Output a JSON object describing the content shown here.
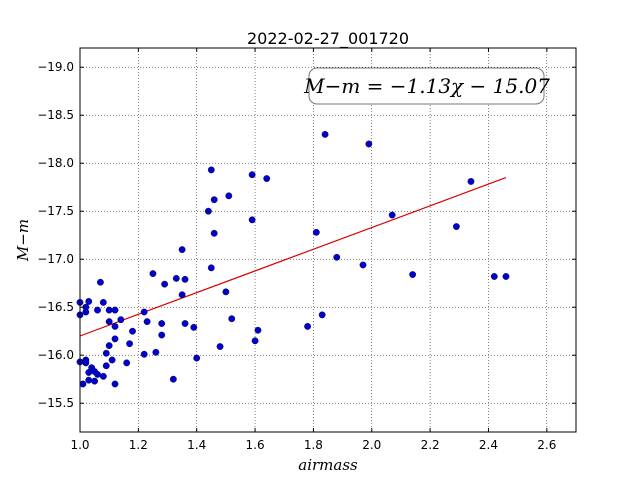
{
  "chart_data": {
    "type": "scatter",
    "title": "2022-02-27_001720",
    "xlabel": "airmass",
    "ylabel": "M−m",
    "xlim": [
      1.0,
      2.7
    ],
    "ylim": [
      -19.2,
      -15.2
    ],
    "y_inverted": true,
    "grid": true,
    "xticks": [
      "1.0",
      "1.2",
      "1.4",
      "1.6",
      "1.8",
      "2.0",
      "2.2",
      "2.4",
      "2.6"
    ],
    "yticks": [
      "−15.5",
      "−16.0",
      "−16.5",
      "−17.0",
      "−17.5",
      "−18.0",
      "−18.5",
      "−19.0"
    ],
    "annotation": "M−m = −1.13χ − 15.07",
    "fit": {
      "slope": -1.13,
      "intercept": -15.07,
      "x_range": [
        1.0,
        2.46
      ],
      "color": "#dd0000"
    },
    "marker_color": "#0000cc",
    "points": [
      [
        1.0,
        -15.93
      ],
      [
        1.01,
        -15.7
      ],
      [
        1.02,
        -15.95
      ],
      [
        1.02,
        -15.92
      ],
      [
        1.03,
        -15.82
      ],
      [
        1.03,
        -15.74
      ],
      [
        1.04,
        -15.87
      ],
      [
        1.05,
        -15.73
      ],
      [
        1.05,
        -15.83
      ],
      [
        1.06,
        -15.8
      ],
      [
        1.08,
        -15.78
      ],
      [
        1.09,
        -15.89
      ],
      [
        1.09,
        -16.02
      ],
      [
        1.1,
        -16.1
      ],
      [
        1.12,
        -15.7
      ],
      [
        1.11,
        -15.95
      ],
      [
        1.16,
        -15.92
      ],
      [
        1.0,
        -16.42
      ],
      [
        1.0,
        -16.55
      ],
      [
        1.02,
        -16.45
      ],
      [
        1.02,
        -16.5
      ],
      [
        1.03,
        -16.56
      ],
      [
        1.06,
        -16.47
      ],
      [
        1.08,
        -16.55
      ],
      [
        1.07,
        -16.76
      ],
      [
        1.1,
        -16.35
      ],
      [
        1.1,
        -16.47
      ],
      [
        1.12,
        -16.3
      ],
      [
        1.12,
        -16.17
      ],
      [
        1.12,
        -16.47
      ],
      [
        1.14,
        -16.37
      ],
      [
        1.17,
        -16.12
      ],
      [
        1.18,
        -16.25
      ],
      [
        1.22,
        -16.01
      ],
      [
        1.22,
        -16.45
      ],
      [
        1.23,
        -16.35
      ],
      [
        1.25,
        -16.85
      ],
      [
        1.26,
        -16.03
      ],
      [
        1.28,
        -16.21
      ],
      [
        1.28,
        -16.33
      ],
      [
        1.29,
        -16.74
      ],
      [
        1.32,
        -15.75
      ],
      [
        1.33,
        -16.8
      ],
      [
        1.35,
        -17.1
      ],
      [
        1.35,
        -16.63
      ],
      [
        1.36,
        -16.79
      ],
      [
        1.36,
        -16.33
      ],
      [
        1.39,
        -16.29
      ],
      [
        1.4,
        -15.97
      ],
      [
        1.44,
        -17.5
      ],
      [
        1.45,
        -16.91
      ],
      [
        1.46,
        -17.27
      ],
      [
        1.46,
        -17.62
      ],
      [
        1.45,
        -17.93
      ],
      [
        1.48,
        -16.09
      ],
      [
        1.5,
        -16.66
      ],
      [
        1.51,
        -17.66
      ],
      [
        1.52,
        -16.38
      ],
      [
        1.59,
        -17.41
      ],
      [
        1.59,
        -17.88
      ],
      [
        1.6,
        -16.15
      ],
      [
        1.61,
        -16.26
      ],
      [
        1.64,
        -17.84
      ],
      [
        1.78,
        -16.3
      ],
      [
        1.81,
        -17.28
      ],
      [
        1.83,
        -16.42
      ],
      [
        1.84,
        -18.3
      ],
      [
        1.88,
        -17.02
      ],
      [
        1.97,
        -16.94
      ],
      [
        1.99,
        -18.2
      ],
      [
        2.07,
        -17.46
      ],
      [
        2.14,
        -16.84
      ],
      [
        2.29,
        -17.34
      ],
      [
        2.34,
        -17.81
      ],
      [
        2.42,
        -16.82
      ],
      [
        2.46,
        -16.82
      ]
    ]
  }
}
